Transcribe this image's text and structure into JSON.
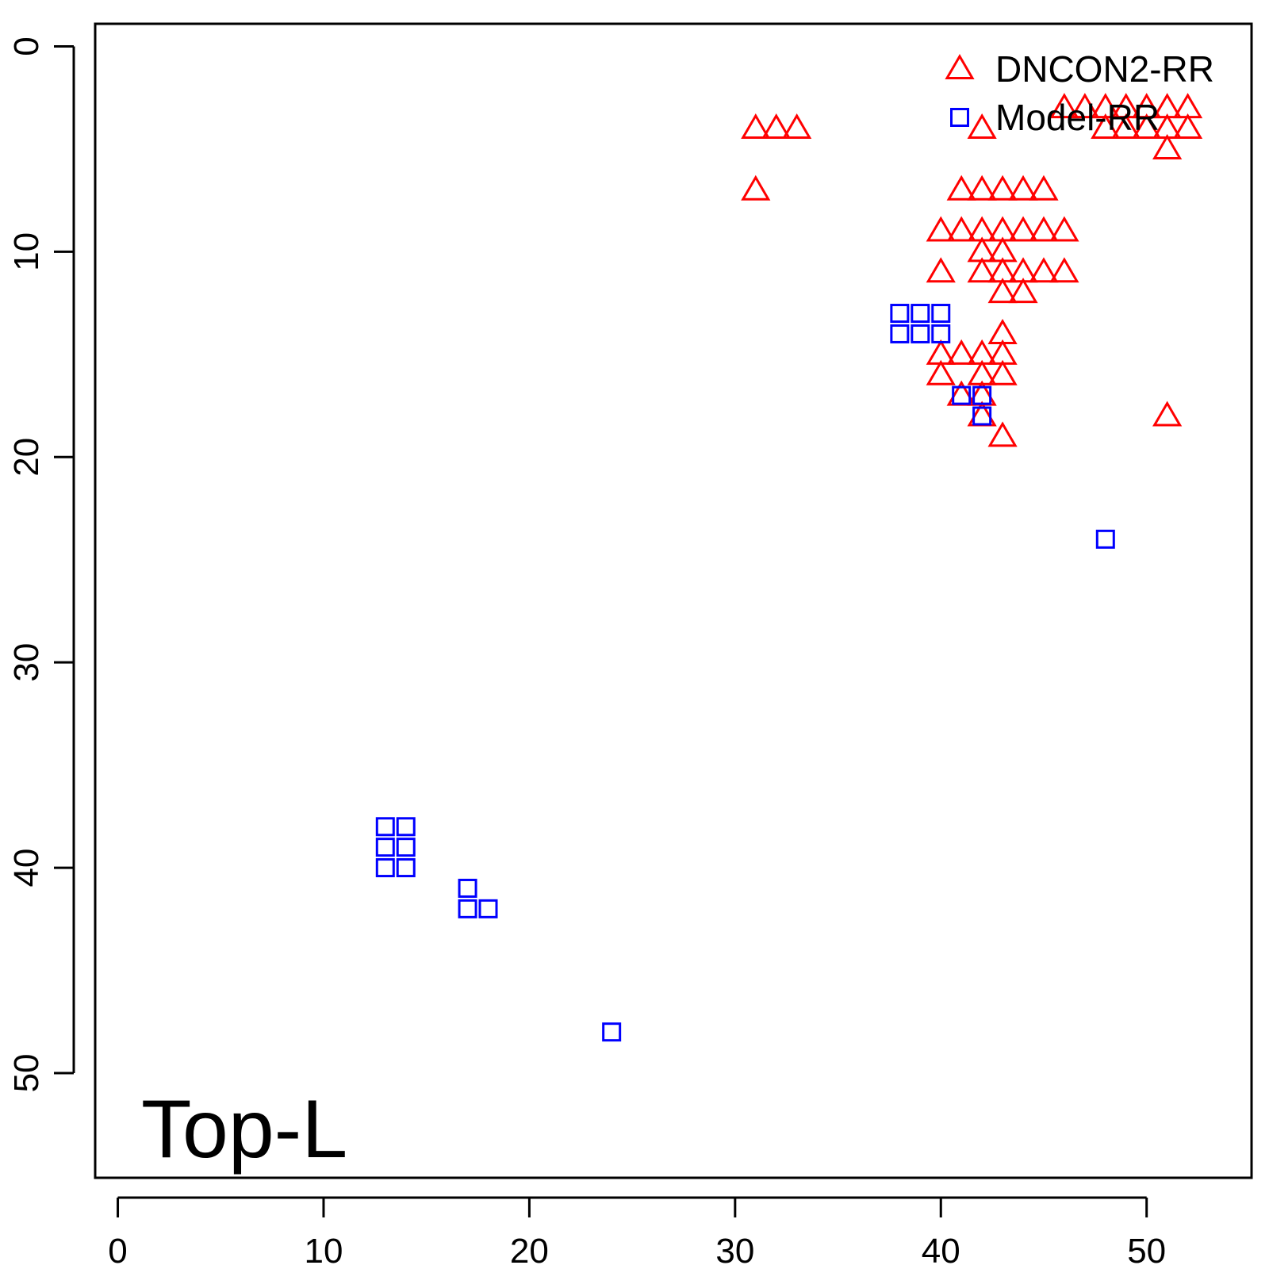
{
  "chart_data": {
    "type": "scatter",
    "title": "",
    "xlabel": "",
    "ylabel": "",
    "xlim": [
      -1.1,
      55.1
    ],
    "ylim": [
      55.1,
      -1.1
    ],
    "y_axis_inverted": true,
    "x_ticks": [
      0,
      10,
      20,
      30,
      40,
      50
    ],
    "y_ticks": [
      0,
      10,
      20,
      30,
      40,
      50
    ],
    "grid": false,
    "legend_position": "top-right",
    "annotation": "Top-L",
    "series": [
      {
        "name": "DNCON2-RR",
        "marker": "triangle-open",
        "color": "#ff0000",
        "points": [
          [
            31,
            4
          ],
          [
            32,
            4
          ],
          [
            33,
            4
          ],
          [
            31,
            7
          ],
          [
            41,
            7
          ],
          [
            42,
            7
          ],
          [
            43,
            7
          ],
          [
            44,
            7
          ],
          [
            45,
            7
          ],
          [
            40,
            9
          ],
          [
            41,
            9
          ],
          [
            42,
            9
          ],
          [
            43,
            9
          ],
          [
            44,
            9
          ],
          [
            45,
            9
          ],
          [
            46,
            9
          ],
          [
            42,
            10
          ],
          [
            43,
            10
          ],
          [
            40,
            11
          ],
          [
            42,
            11
          ],
          [
            43,
            11
          ],
          [
            44,
            11
          ],
          [
            45,
            11
          ],
          [
            46,
            11
          ],
          [
            43,
            12
          ],
          [
            44,
            12
          ],
          [
            43,
            14
          ],
          [
            40,
            15
          ],
          [
            41,
            15
          ],
          [
            42,
            15
          ],
          [
            43,
            15
          ],
          [
            40,
            16
          ],
          [
            42,
            16
          ],
          [
            43,
            16
          ],
          [
            41,
            17
          ],
          [
            42,
            17
          ],
          [
            42,
            18
          ],
          [
            51,
            18
          ],
          [
            43,
            19
          ],
          [
            42,
            4
          ],
          [
            46,
            3
          ],
          [
            47,
            3
          ],
          [
            48,
            3
          ],
          [
            49,
            3
          ],
          [
            50,
            3
          ],
          [
            51,
            3
          ],
          [
            52,
            3
          ],
          [
            48,
            4
          ],
          [
            49,
            4
          ],
          [
            50,
            4
          ],
          [
            51,
            4
          ],
          [
            52,
            4
          ],
          [
            51,
            5
          ]
        ]
      },
      {
        "name": "Model-RR",
        "marker": "square-open",
        "color": "#0000ff",
        "points": [
          [
            38,
            13
          ],
          [
            39,
            13
          ],
          [
            40,
            13
          ],
          [
            38,
            14
          ],
          [
            39,
            14
          ],
          [
            40,
            14
          ],
          [
            41,
            17
          ],
          [
            42,
            17
          ],
          [
            42,
            18
          ],
          [
            48,
            24
          ],
          [
            13,
            38
          ],
          [
            14,
            38
          ],
          [
            13,
            39
          ],
          [
            14,
            39
          ],
          [
            13,
            40
          ],
          [
            14,
            40
          ],
          [
            17,
            41
          ],
          [
            17,
            42
          ],
          [
            18,
            42
          ],
          [
            24,
            48
          ]
        ]
      }
    ]
  }
}
